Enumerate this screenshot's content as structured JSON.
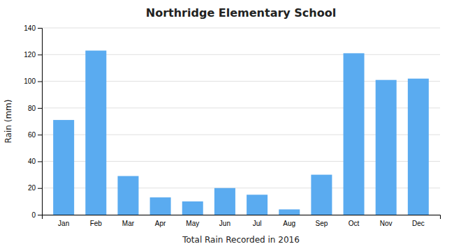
{
  "chart_data": {
    "type": "bar",
    "title": "Northridge Elementary School",
    "xlabel": "Total Rain Recorded in 2016",
    "ylabel": "Rain (mm)",
    "categories": [
      "Jan",
      "Feb",
      "Mar",
      "Apr",
      "May",
      "Jun",
      "Jul",
      "Aug",
      "Sep",
      "Oct",
      "Nov",
      "Dec"
    ],
    "values": [
      71,
      123,
      29,
      13,
      10,
      20,
      15,
      4,
      30,
      121,
      101,
      102
    ],
    "color": "#5aabf0",
    "ylim": [
      0,
      140
    ],
    "yticks": [
      0,
      20,
      40,
      60,
      80,
      100,
      120,
      140
    ],
    "grid": true
  }
}
